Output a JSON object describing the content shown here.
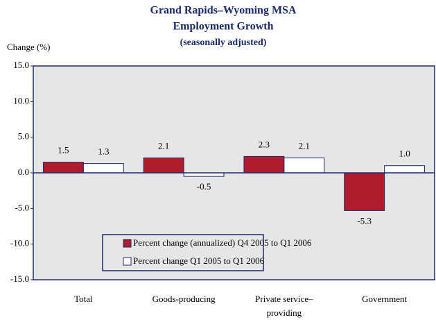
{
  "chart_data": {
    "type": "bar",
    "title": "Grand Rapids–Wyoming MSA",
    "subtitle": "Employment Growth",
    "note": "(seasonally adjusted)",
    "y_axis_label": "Change (%)",
    "categories": [
      "Total",
      "Goods-producing",
      "Private service–providing",
      "Government"
    ],
    "series": [
      {
        "name": "Percent change (annualized) Q4 2005  to Q1 2006",
        "color": "#b01c2e",
        "values": [
          1.5,
          2.1,
          2.3,
          -5.3
        ],
        "value_labels": [
          "1.5",
          "2.1",
          "2.3",
          "-5.3"
        ]
      },
      {
        "name": "Percent change Q1 2005  to Q1 2006",
        "color": "#ffffff",
        "values": [
          1.3,
          -0.5,
          2.1,
          1.0
        ],
        "value_labels": [
          "1.3",
          "-0.5",
          "2.1",
          "1.0"
        ]
      }
    ],
    "ylim": [
      -15,
      15
    ],
    "yticks": [
      {
        "value": -15,
        "label": "-15.0"
      },
      {
        "value": -10,
        "label": "-10.0"
      },
      {
        "value": -5,
        "label": "-5.0"
      },
      {
        "value": 0,
        "label": "0.0"
      },
      {
        "value": 5,
        "label": "5.0"
      },
      {
        "value": 10,
        "label": "10.0"
      },
      {
        "value": 15,
        "label": "15.0"
      }
    ],
    "grid": false
  }
}
